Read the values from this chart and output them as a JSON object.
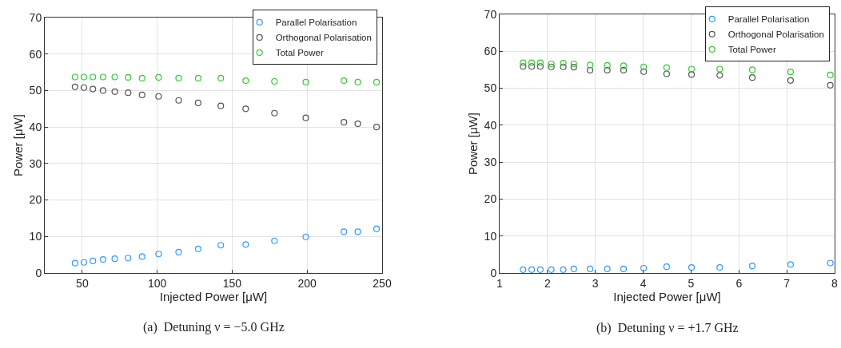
{
  "chart_data": [
    {
      "type": "scatter",
      "xlabel": "Injected Power [μW]",
      "ylabel": "Power [μW]",
      "annotations": [
        "(a)  Detuning ν = −5.0 GHz"
      ],
      "xlim": [
        25,
        250
      ],
      "xticks": [
        50,
        100,
        150,
        200,
        250
      ],
      "ylim": [
        0,
        70
      ],
      "yticks": [
        0,
        10,
        20,
        30,
        40,
        50,
        60,
        70
      ],
      "grid": true,
      "legend": "top right",
      "marker": "circle",
      "x": [
        45.2,
        51.1,
        57.1,
        63.9,
        71.7,
        80.6,
        89.9,
        100.9,
        114.3,
        127.3,
        142.4,
        159.0,
        178.2,
        199.1,
        224.5,
        233.8,
        246.3
      ],
      "series": [
        {
          "name": "Parallel Polarisation",
          "color": "#3399ff",
          "values": [
            2.7,
            2.9,
            3.3,
            3.7,
            3.9,
            4.1,
            4.5,
            5.2,
            5.7,
            6.6,
            7.6,
            7.8,
            8.8,
            9.9,
            11.3,
            11.3,
            12.1
          ]
        },
        {
          "name": "Orthogonal Polarisation",
          "color": "#555555",
          "values": [
            51.0,
            50.8,
            50.4,
            50.0,
            49.7,
            49.4,
            48.8,
            48.4,
            47.3,
            46.6,
            45.8,
            45.0,
            43.8,
            42.5,
            41.3,
            40.9,
            40.0
          ]
        },
        {
          "name": "Total Power",
          "color": "#33cc33",
          "values": [
            53.7,
            53.7,
            53.7,
            53.7,
            53.7,
            53.6,
            53.4,
            53.6,
            53.4,
            53.4,
            53.4,
            52.7,
            52.5,
            52.3,
            52.7,
            52.3,
            52.3
          ]
        }
      ]
    },
    {
      "type": "scatter",
      "xlabel": "Injected Power [μW]",
      "ylabel": "Power [μW]",
      "annotations": [
        "(b)  Detuning ν = +1.7 GHz"
      ],
      "xlim": [
        1,
        8
      ],
      "xticks": [
        1,
        2,
        3,
        4,
        5,
        6,
        7,
        8
      ],
      "ylim": [
        0,
        70
      ],
      "yticks": [
        0,
        10,
        20,
        30,
        40,
        50,
        60,
        70
      ],
      "grid": true,
      "legend": "top right",
      "marker": "circle",
      "x": [
        1.49,
        1.67,
        1.85,
        2.08,
        2.33,
        2.55,
        2.89,
        3.25,
        3.59,
        4.01,
        4.49,
        5.01,
        5.6,
        6.28,
        7.08,
        7.91
      ],
      "series": [
        {
          "name": "Parallel Polarisation",
          "color": "#3399ff",
          "values": [
            0.9,
            0.9,
            0.9,
            0.9,
            0.9,
            1.1,
            1.1,
            1.1,
            1.1,
            1.3,
            1.7,
            1.5,
            1.5,
            1.9,
            2.3,
            2.7
          ]
        },
        {
          "name": "Orthogonal Polarisation",
          "color": "#555555",
          "values": [
            55.9,
            55.9,
            55.9,
            55.8,
            55.8,
            55.7,
            54.9,
            54.9,
            54.9,
            54.5,
            53.9,
            53.7,
            53.5,
            52.9,
            52.1,
            50.8
          ]
        },
        {
          "name": "Total Power",
          "color": "#33cc33",
          "values": [
            56.9,
            56.9,
            56.9,
            56.6,
            56.8,
            56.6,
            56.3,
            56.2,
            56.1,
            55.8,
            55.6,
            55.2,
            55.2,
            55.0,
            54.4,
            53.6
          ]
        }
      ]
    }
  ]
}
